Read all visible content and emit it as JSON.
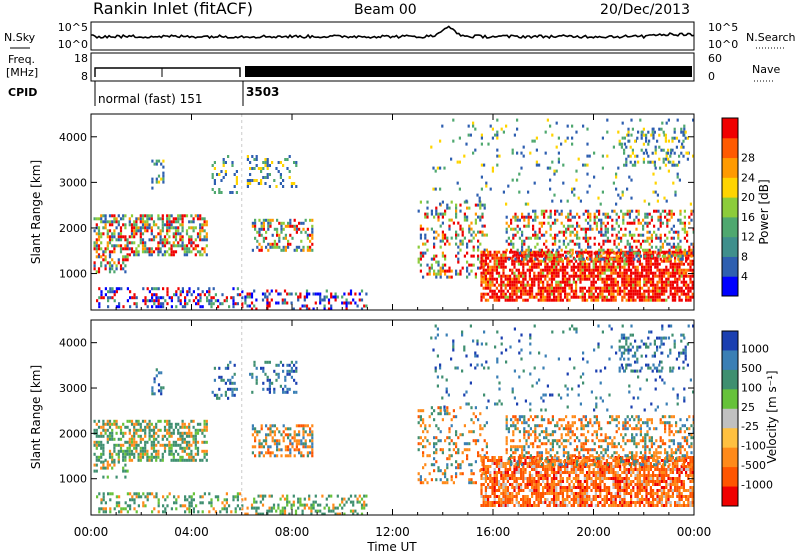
{
  "header": {
    "station": "Rankin Inlet (fitACF)",
    "beam": "Beam 00",
    "date": "20/Dec/2013"
  },
  "noise_panel": {
    "left_label": "N.Sky",
    "right_label": "N.Search",
    "left_ticks": [
      "10^5",
      "10^0"
    ],
    "right_ticks": [
      "10^5",
      "10^0"
    ]
  },
  "freq_panel": {
    "left_label_1": "Freq.",
    "left_label_2": "[MHz]",
    "left_ticks": [
      "18",
      "8"
    ],
    "right_label": "Nave",
    "right_ticks": [
      "60",
      "0"
    ]
  },
  "cpid": {
    "label": "CPID",
    "program_1": "normal (fast) 151",
    "program_2": "3503",
    "program_2_start_hour": 6.0
  },
  "chart_data": [
    {
      "type": "heatmap",
      "name": "Power",
      "ylabel": "Slant Range [km]",
      "y_ticks": [
        "1000",
        "2000",
        "3000",
        "4000"
      ],
      "ylim": [
        200,
        4500
      ],
      "xlim": [
        0,
        24
      ],
      "colorbar_label": "Power [dB]",
      "colorbar_ticks": [
        "4",
        "8",
        "12",
        "16",
        "20",
        "24",
        "28"
      ],
      "colorbar_colors": [
        "#0000ff",
        "#2e5fb0",
        "#3f8f8c",
        "#4fa86f",
        "#8ccc3a",
        "#ffd400",
        "#ff9a00",
        "#ff5a00",
        "#f00000"
      ]
    },
    {
      "type": "heatmap",
      "name": "Velocity",
      "ylabel": "Slant Range [km]",
      "y_ticks": [
        "1000",
        "2000",
        "3000",
        "4000"
      ],
      "ylim": [
        200,
        4500
      ],
      "xlim": [
        0,
        24
      ],
      "colorbar_label": "Velocity [m s⁻¹]",
      "colorbar_ticks": [
        "1000",
        "500",
        "100",
        "25",
        "-25",
        "-100",
        "-500",
        "-1000"
      ],
      "colorbar_colors": [
        "#1b3fb0",
        "#3a7fb5",
        "#3f8f70",
        "#66c23a",
        "#c0c0c0",
        "#ffc040",
        "#ff8a1a",
        "#ff5500",
        "#f00000"
      ]
    }
  ],
  "x_axis": {
    "ticks": [
      "00:00",
      "04:00",
      "08:00",
      "12:00",
      "16:00",
      "20:00",
      "00:00"
    ],
    "label": "Time UT"
  }
}
